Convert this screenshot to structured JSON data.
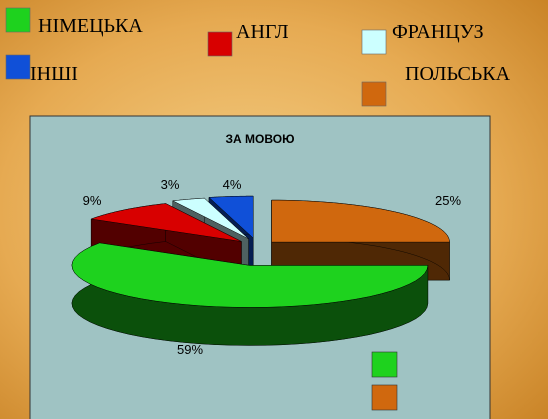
{
  "chart_data": {
    "type": "pie",
    "title": "ЗА МОВОЮ",
    "categories": [
      "НІМЕЦЬКА",
      "АНГЛ",
      "ФРАНЦУЗ",
      "ІНШІ",
      "ПОЛЬСЬКА"
    ],
    "values": [
      59,
      9,
      3,
      4,
      25
    ],
    "value_labels": [
      "59%",
      "9%",
      "3%",
      "4%",
      "25%"
    ],
    "colors": [
      "#1ed21e",
      "#d80000",
      "#ccffff",
      "#1050d8",
      "#d0680e"
    ],
    "legend": "top"
  }
}
